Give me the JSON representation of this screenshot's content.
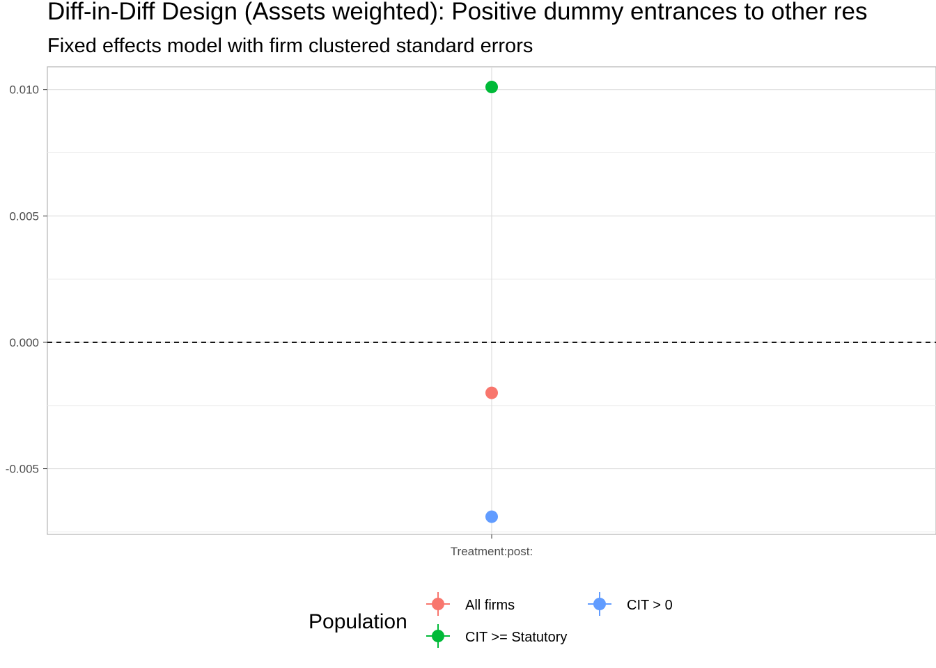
{
  "chart_data": {
    "type": "scatter",
    "title": "Diff-in-Diff Design (Assets weighted): Positive dummy entrances to other res",
    "subtitle": "Fixed effects model with firm clustered standard errors",
    "xlabel": "",
    "ylabel": "",
    "categories": [
      "Treatment:post:"
    ],
    "y_ticks": [
      {
        "value": 0.01,
        "label": "0.010"
      },
      {
        "value": 0.005,
        "label": "0.005"
      },
      {
        "value": 0.0,
        "label": "0.000"
      },
      {
        "value": -0.005,
        "label": "-0.005"
      }
    ],
    "ylim": [
      -0.0076,
      0.0109
    ],
    "reference_line": {
      "y": 0,
      "style": "dashed"
    },
    "grid": true,
    "series": [
      {
        "name": "All firms",
        "color": "#F8766D",
        "points": [
          {
            "x": "Treatment:post:",
            "y": -0.002
          }
        ]
      },
      {
        "name": "CIT >= Statutory",
        "color": "#00BA38",
        "points": [
          {
            "x": "Treatment:post:",
            "y": 0.0101
          }
        ]
      },
      {
        "name": "CIT > 0",
        "color": "#619CFF",
        "points": [
          {
            "x": "Treatment:post:",
            "y": -0.0069
          }
        ]
      }
    ],
    "legend": {
      "title": "Population",
      "placement": "bottom",
      "order": [
        "All firms",
        "CIT >= Statutory",
        "CIT > 0"
      ]
    }
  }
}
